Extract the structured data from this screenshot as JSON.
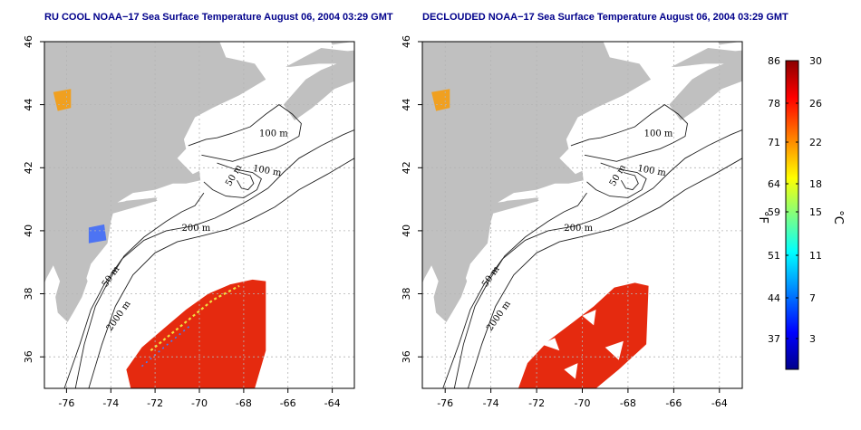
{
  "chart_data": [
    {
      "type": "heatmap",
      "title": "RU COOL NOAA−17 Sea Surface Temperature August 06, 2004 03:29 GMT",
      "x_ticks": [
        "-76",
        "-74",
        "-72",
        "-70",
        "-68",
        "-66",
        "-64"
      ],
      "y_ticks": [
        "36",
        "38",
        "40",
        "42",
        "44",
        "46"
      ],
      "xlim": [
        -77.0,
        -63.0
      ],
      "ylim": [
        35.0,
        46.0
      ],
      "grid": true,
      "contour_labels": [
        "100 m",
        "100 m",
        "50 m",
        "200 m",
        "50 m",
        "2000 m"
      ],
      "sst_region": {
        "lon_min": -73.0,
        "lon_max": -67.0,
        "lat_min": 35.0,
        "lat_max": 38.5,
        "temp_c": 26,
        "clouded": true
      }
    },
    {
      "type": "heatmap",
      "title": "DECLOUDED NOAA−17 Sea Surface Temperature August 06, 2004 03:29 GMT",
      "x_ticks": [
        "-76",
        "-74",
        "-72",
        "-70",
        "-68",
        "-66",
        "-64"
      ],
      "y_ticks": [
        "36",
        "38",
        "40",
        "42",
        "44",
        "46"
      ],
      "xlim": [
        -77.0,
        -63.0
      ],
      "ylim": [
        35.0,
        46.0
      ],
      "grid": true,
      "contour_labels": [
        "100 m",
        "100 m",
        "50 m",
        "200 m",
        "50 m",
        "2000 m"
      ],
      "sst_region": {
        "lon_min": -73.0,
        "lon_max": -67.0,
        "lat_min": 35.0,
        "lat_max": 38.5,
        "temp_c": 27,
        "clouded": false
      }
    }
  ],
  "colorbar": {
    "fahrenheit_ticks": [
      "86",
      "78",
      "71",
      "64",
      "59",
      "51",
      "44",
      "37"
    ],
    "celsius_ticks": [
      "30",
      "26",
      "22",
      "18",
      "15",
      "11",
      "7",
      "3"
    ],
    "fahrenheit_label": "°F",
    "celsius_label": "°C",
    "range_c": [
      0,
      30
    ],
    "colors": [
      "#00008b",
      "#0000ff",
      "#0080ff",
      "#00ffff",
      "#80ff80",
      "#ffff00",
      "#ff8000",
      "#ff0000",
      "#8b0000"
    ]
  },
  "colors": {
    "land": "#c0c0c0",
    "ocean": "#ffffff",
    "grid": "#b4b4b4",
    "title": "#00008b"
  }
}
